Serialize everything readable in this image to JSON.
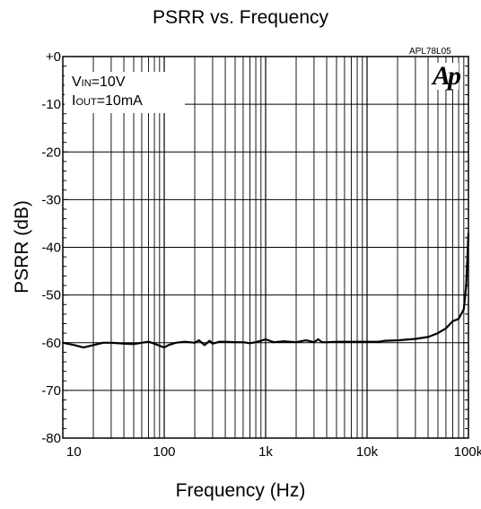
{
  "chart_data": {
    "type": "line",
    "title": "PSRR vs. Frequency",
    "xlabel": "Frequency (Hz)",
    "ylabel": "PSRR (dB)",
    "x_scale": "log",
    "xlim": [
      10,
      100000
    ],
    "ylim": [
      -80,
      0
    ],
    "x_ticks": [
      {
        "value": 10,
        "label": "10"
      },
      {
        "value": 100,
        "label": "100"
      },
      {
        "value": 1000,
        "label": "1k"
      },
      {
        "value": 10000,
        "label": "10k"
      },
      {
        "value": 100000,
        "label": "100k"
      }
    ],
    "y_ticks": [
      {
        "value": 0,
        "label": "+0"
      },
      {
        "value": -10,
        "label": "-10"
      },
      {
        "value": -20,
        "label": "-20"
      },
      {
        "value": -30,
        "label": "-30"
      },
      {
        "value": -40,
        "label": "-40"
      },
      {
        "value": -50,
        "label": "-50"
      },
      {
        "value": -60,
        "label": "-60"
      },
      {
        "value": -70,
        "label": "-70"
      },
      {
        "value": -80,
        "label": "-80"
      }
    ],
    "grid": true,
    "conditions": {
      "vin_prefix": "V",
      "vin_sub": "IN",
      "vin_value": "=10V",
      "iout_prefix": "I",
      "iout_sub": "OUT",
      "iout_value": "=10mA"
    },
    "part_code": "APL78L05",
    "logo_text": "Ap",
    "series": [
      {
        "x": [
          10,
          13,
          16,
          20,
          25,
          30,
          40,
          50,
          60,
          70,
          80,
          100,
          110,
          130,
          160,
          200,
          220,
          250,
          280,
          300,
          350,
          400,
          500,
          600,
          700,
          800,
          900,
          1000,
          1200,
          1500,
          2000,
          2500,
          3000,
          3300,
          3600,
          4000,
          5000,
          7000,
          10000,
          13000,
          15000,
          20000,
          30000,
          40000,
          50000,
          60000,
          70000,
          80000,
          90000,
          95000,
          100000
        ],
        "y": [
          -60,
          -60.5,
          -61,
          -60.5,
          -60,
          -60,
          -60.2,
          -60.3,
          -60,
          -59.8,
          -60.2,
          -61,
          -60.5,
          -60,
          -59.8,
          -60,
          -59.5,
          -60.5,
          -59.6,
          -60.2,
          -59.8,
          -59.8,
          -59.9,
          -59.9,
          -60.1,
          -59.9,
          -59.6,
          -59.3,
          -59.9,
          -59.7,
          -59.9,
          -59.5,
          -59.9,
          -59.3,
          -59.9,
          -59.9,
          -59.8,
          -59.8,
          -59.8,
          -59.8,
          -59.6,
          -59.5,
          -59.2,
          -58.8,
          -58,
          -57,
          -55.5,
          -55,
          -53,
          -48,
          -37
        ]
      }
    ]
  }
}
